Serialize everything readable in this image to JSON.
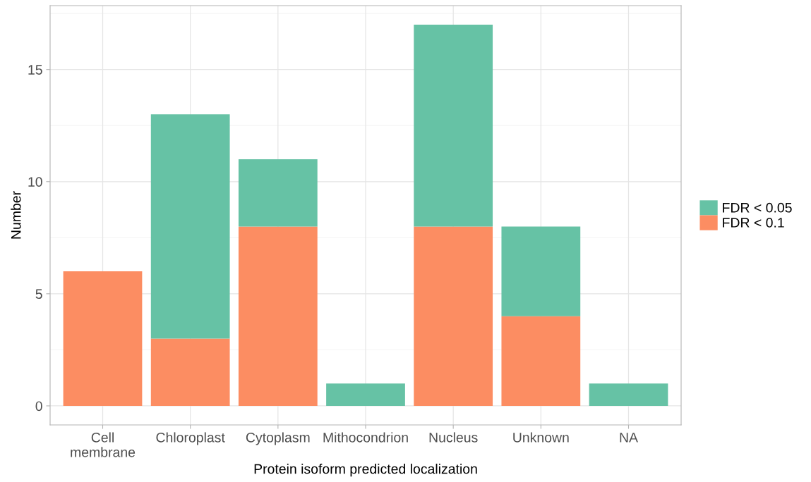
{
  "chart_data": {
    "type": "bar",
    "stacked": true,
    "xlabel": "Protein isoform predicted localization",
    "ylabel": "Number",
    "categories": [
      "Cell\nmembrane",
      "Chloroplast",
      "Cytoplasm",
      "Mithocondrion",
      "Nucleus",
      "Unknown",
      "NA"
    ],
    "series": [
      {
        "name": "FDR < 0.1",
        "color": "#fc8d62",
        "values": [
          6,
          3,
          8,
          0,
          8,
          4,
          0
        ]
      },
      {
        "name": "FDR < 0.05",
        "color": "#66c2a5",
        "values": [
          0,
          10,
          3,
          1,
          9,
          4,
          1
        ]
      }
    ],
    "ylim": [
      -0.85,
      17.85
    ],
    "yticks": [
      0,
      5,
      10,
      15
    ],
    "grid": true,
    "legend": "right"
  }
}
